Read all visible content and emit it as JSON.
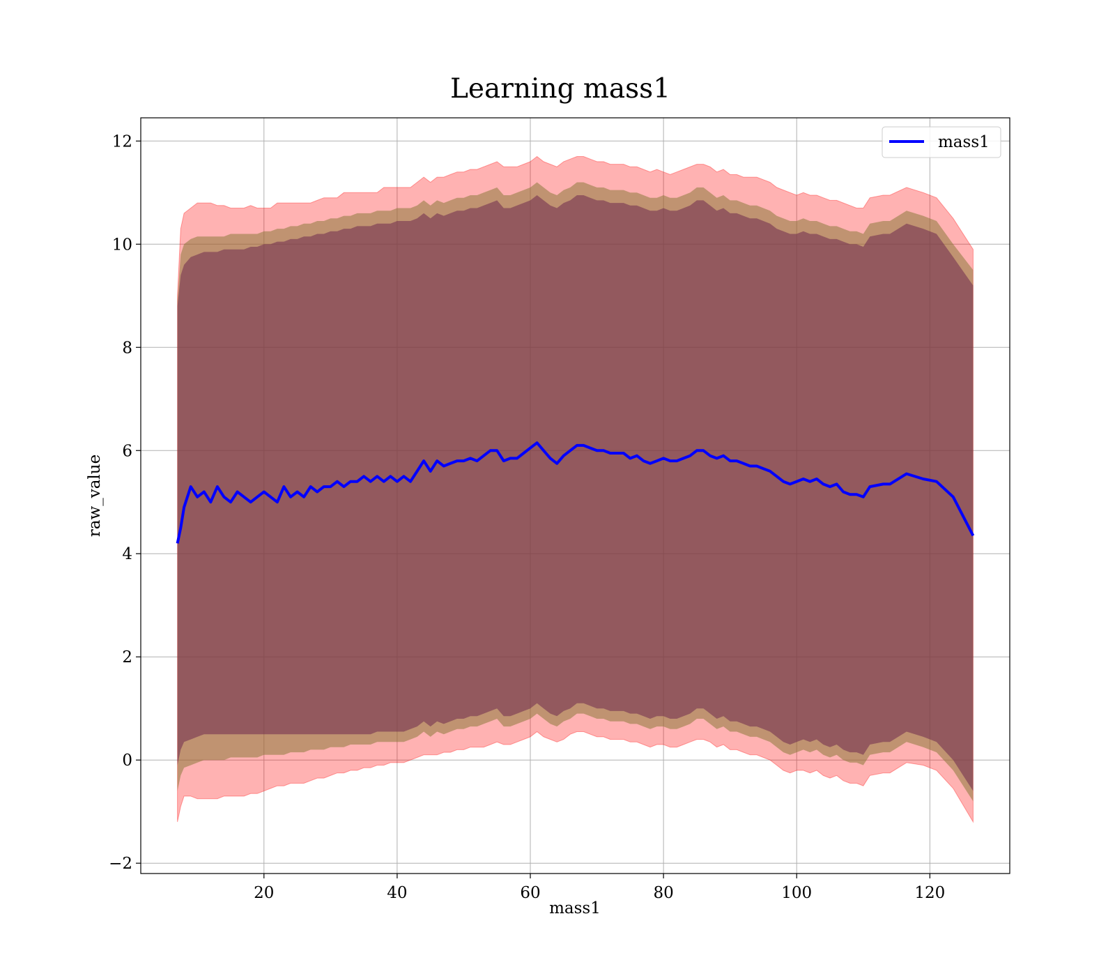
{
  "chart_data": {
    "type": "line",
    "title": "Learning mass1",
    "xlabel": "mass1",
    "ylabel": "raw_value",
    "xlim": [
      1.5,
      132
    ],
    "ylim": [
      -2.2,
      12.45
    ],
    "xticks": [
      20,
      40,
      60,
      80,
      100,
      120
    ],
    "yticks": [
      -2,
      0,
      2,
      4,
      6,
      8,
      10,
      12
    ],
    "grid": true,
    "legend": {
      "position": "top-right",
      "entries": [
        "mass1"
      ]
    },
    "colors": {
      "line": "#0000ff",
      "outer_band": "#ff0000",
      "middle_band": "#8c7a3c",
      "inner_band": "#6e2a4e"
    },
    "series": [
      {
        "name": "mass1",
        "x": [
          7,
          7.5,
          8,
          9,
          10,
          11,
          12,
          13,
          14,
          15,
          16,
          17,
          18,
          19,
          20,
          21,
          22,
          23,
          24,
          25,
          26,
          27,
          28,
          29,
          30,
          31,
          32,
          33,
          34,
          35,
          36,
          37,
          38,
          39,
          40,
          41,
          42,
          43,
          44,
          45,
          46,
          47,
          48,
          49,
          50,
          51,
          52,
          53,
          54,
          55,
          56,
          57,
          58,
          59,
          60,
          61,
          62,
          63,
          64,
          65,
          66,
          67,
          68,
          69,
          70,
          71,
          72,
          73,
          74,
          75,
          76,
          77,
          78,
          79,
          80,
          81,
          82,
          83,
          84,
          85,
          86,
          87,
          88,
          89,
          90,
          91,
          92,
          93,
          94,
          95,
          96,
          97,
          98,
          99,
          100,
          101,
          102,
          103,
          104,
          105,
          106,
          107,
          108,
          109,
          110,
          111,
          113,
          114,
          116.5,
          119,
          121,
          123.5,
          126.5
        ],
        "y": [
          4.2,
          4.5,
          4.9,
          5.3,
          5.1,
          5.2,
          5.0,
          5.3,
          5.1,
          5.0,
          5.2,
          5.1,
          5.0,
          5.1,
          5.2,
          5.1,
          5.0,
          5.3,
          5.1,
          5.2,
          5.1,
          5.3,
          5.2,
          5.3,
          5.3,
          5.4,
          5.3,
          5.4,
          5.4,
          5.5,
          5.4,
          5.5,
          5.4,
          5.5,
          5.4,
          5.5,
          5.4,
          5.6,
          5.8,
          5.6,
          5.8,
          5.7,
          5.75,
          5.8,
          5.8,
          5.85,
          5.8,
          5.9,
          6.0,
          6.0,
          5.8,
          5.85,
          5.85,
          5.95,
          6.05,
          6.15,
          6.0,
          5.85,
          5.75,
          5.9,
          6.0,
          6.1,
          6.1,
          6.05,
          6.0,
          6.0,
          5.95,
          5.95,
          5.95,
          5.85,
          5.9,
          5.8,
          5.75,
          5.8,
          5.85,
          5.8,
          5.8,
          5.85,
          5.9,
          6.0,
          6.0,
          5.9,
          5.85,
          5.9,
          5.8,
          5.8,
          5.75,
          5.7,
          5.7,
          5.65,
          5.6,
          5.5,
          5.4,
          5.35,
          5.4,
          5.45,
          5.4,
          5.45,
          5.35,
          5.3,
          5.35,
          5.2,
          5.15,
          5.15,
          5.1,
          5.3,
          5.35,
          5.35,
          5.55,
          5.45,
          5.4,
          5.1,
          4.35
        ],
        "outer_band": {
          "upper": [
            9.0,
            10.3,
            10.6,
            10.7,
            10.8,
            10.8,
            10.8,
            10.75,
            10.75,
            10.7,
            10.7,
            10.7,
            10.75,
            10.7,
            10.7,
            10.7,
            10.8,
            10.8,
            10.8,
            10.8,
            10.8,
            10.8,
            10.85,
            10.9,
            10.9,
            10.9,
            11.0,
            11.0,
            11.0,
            11.0,
            11.0,
            11.0,
            11.1,
            11.1,
            11.1,
            11.1,
            11.1,
            11.2,
            11.3,
            11.2,
            11.3,
            11.3,
            11.35,
            11.4,
            11.4,
            11.45,
            11.45,
            11.5,
            11.55,
            11.6,
            11.5,
            11.5,
            11.5,
            11.55,
            11.6,
            11.7,
            11.6,
            11.55,
            11.5,
            11.6,
            11.65,
            11.7,
            11.7,
            11.65,
            11.6,
            11.6,
            11.55,
            11.55,
            11.55,
            11.5,
            11.5,
            11.45,
            11.4,
            11.45,
            11.4,
            11.35,
            11.4,
            11.45,
            11.5,
            11.55,
            11.55,
            11.5,
            11.4,
            11.45,
            11.35,
            11.35,
            11.3,
            11.3,
            11.3,
            11.25,
            11.2,
            11.1,
            11.05,
            11.0,
            10.95,
            11.0,
            10.95,
            10.95,
            10.9,
            10.85,
            10.85,
            10.8,
            10.75,
            10.7,
            10.7,
            10.9,
            10.95,
            10.95,
            11.1,
            11.0,
            10.9,
            10.5,
            9.9
          ],
          "lower": [
            -1.2,
            -0.9,
            -0.7,
            -0.7,
            -0.75,
            -0.75,
            -0.75,
            -0.75,
            -0.7,
            -0.7,
            -0.7,
            -0.7,
            -0.65,
            -0.65,
            -0.6,
            -0.55,
            -0.5,
            -0.5,
            -0.45,
            -0.45,
            -0.45,
            -0.4,
            -0.35,
            -0.35,
            -0.3,
            -0.25,
            -0.25,
            -0.2,
            -0.2,
            -0.15,
            -0.15,
            -0.1,
            -0.1,
            -0.05,
            -0.05,
            -0.05,
            0.0,
            0.05,
            0.1,
            0.1,
            0.1,
            0.15,
            0.15,
            0.2,
            0.2,
            0.25,
            0.25,
            0.25,
            0.3,
            0.35,
            0.3,
            0.3,
            0.35,
            0.4,
            0.45,
            0.55,
            0.45,
            0.4,
            0.35,
            0.4,
            0.5,
            0.55,
            0.55,
            0.5,
            0.45,
            0.45,
            0.4,
            0.4,
            0.4,
            0.35,
            0.35,
            0.3,
            0.25,
            0.3,
            0.3,
            0.25,
            0.25,
            0.3,
            0.35,
            0.4,
            0.4,
            0.35,
            0.25,
            0.3,
            0.2,
            0.2,
            0.15,
            0.1,
            0.1,
            0.05,
            0.0,
            -0.1,
            -0.2,
            -0.25,
            -0.2,
            -0.2,
            -0.25,
            -0.2,
            -0.3,
            -0.35,
            -0.3,
            -0.4,
            -0.45,
            -0.45,
            -0.5,
            -0.3,
            -0.25,
            -0.25,
            -0.05,
            -0.1,
            -0.2,
            -0.55,
            -1.2
          ]
        },
        "middle_band": {
          "upper": [
            8.9,
            9.8,
            10.0,
            10.1,
            10.15,
            10.15,
            10.15,
            10.15,
            10.15,
            10.2,
            10.2,
            10.2,
            10.2,
            10.2,
            10.25,
            10.25,
            10.3,
            10.3,
            10.35,
            10.35,
            10.4,
            10.4,
            10.45,
            10.45,
            10.5,
            10.5,
            10.55,
            10.55,
            10.6,
            10.6,
            10.6,
            10.65,
            10.65,
            10.65,
            10.7,
            10.7,
            10.7,
            10.75,
            10.85,
            10.75,
            10.85,
            10.8,
            10.85,
            10.9,
            10.9,
            10.95,
            10.95,
            11.0,
            11.05,
            11.1,
            10.95,
            10.95,
            11.0,
            11.05,
            11.1,
            11.2,
            11.1,
            11.0,
            10.95,
            11.05,
            11.1,
            11.2,
            11.2,
            11.15,
            11.1,
            11.1,
            11.05,
            11.05,
            11.05,
            11.0,
            11.0,
            10.95,
            10.9,
            10.9,
            10.95,
            10.9,
            10.9,
            10.95,
            11.0,
            11.1,
            11.1,
            11.0,
            10.9,
            10.95,
            10.85,
            10.85,
            10.8,
            10.75,
            10.75,
            10.7,
            10.65,
            10.55,
            10.5,
            10.45,
            10.45,
            10.5,
            10.45,
            10.45,
            10.4,
            10.35,
            10.35,
            10.3,
            10.25,
            10.25,
            10.2,
            10.4,
            10.45,
            10.45,
            10.65,
            10.55,
            10.45,
            10.0,
            9.5
          ],
          "lower": [
            -0.6,
            -0.3,
            -0.15,
            -0.1,
            -0.05,
            0.0,
            0.0,
            0.0,
            0.0,
            0.05,
            0.05,
            0.05,
            0.05,
            0.05,
            0.1,
            0.1,
            0.1,
            0.1,
            0.15,
            0.15,
            0.15,
            0.2,
            0.2,
            0.2,
            0.25,
            0.25,
            0.25,
            0.3,
            0.3,
            0.3,
            0.3,
            0.35,
            0.35,
            0.35,
            0.35,
            0.35,
            0.4,
            0.45,
            0.55,
            0.45,
            0.55,
            0.5,
            0.55,
            0.6,
            0.6,
            0.65,
            0.65,
            0.7,
            0.75,
            0.8,
            0.65,
            0.65,
            0.7,
            0.75,
            0.8,
            0.9,
            0.8,
            0.7,
            0.65,
            0.75,
            0.8,
            0.9,
            0.9,
            0.85,
            0.8,
            0.8,
            0.75,
            0.75,
            0.75,
            0.7,
            0.7,
            0.65,
            0.6,
            0.65,
            0.65,
            0.6,
            0.6,
            0.65,
            0.7,
            0.8,
            0.8,
            0.7,
            0.6,
            0.65,
            0.55,
            0.55,
            0.5,
            0.45,
            0.45,
            0.4,
            0.35,
            0.25,
            0.15,
            0.1,
            0.15,
            0.2,
            0.15,
            0.2,
            0.1,
            0.05,
            0.1,
            0.0,
            -0.05,
            -0.05,
            -0.1,
            0.1,
            0.15,
            0.15,
            0.35,
            0.25,
            0.15,
            -0.2,
            -0.8
          ]
        },
        "inner_band": {
          "upper": [
            8.8,
            9.4,
            9.6,
            9.75,
            9.8,
            9.85,
            9.85,
            9.85,
            9.9,
            9.9,
            9.9,
            9.9,
            9.95,
            9.95,
            10.0,
            10.0,
            10.05,
            10.05,
            10.1,
            10.1,
            10.15,
            10.15,
            10.2,
            10.2,
            10.25,
            10.25,
            10.3,
            10.3,
            10.35,
            10.35,
            10.35,
            10.4,
            10.4,
            10.4,
            10.45,
            10.45,
            10.45,
            10.5,
            10.6,
            10.5,
            10.6,
            10.55,
            10.6,
            10.65,
            10.65,
            10.7,
            10.7,
            10.75,
            10.8,
            10.85,
            10.7,
            10.7,
            10.75,
            10.8,
            10.85,
            10.95,
            10.85,
            10.75,
            10.7,
            10.8,
            10.85,
            10.95,
            10.95,
            10.9,
            10.85,
            10.85,
            10.8,
            10.8,
            10.8,
            10.75,
            10.75,
            10.7,
            10.65,
            10.65,
            10.7,
            10.65,
            10.65,
            10.7,
            10.75,
            10.85,
            10.85,
            10.75,
            10.65,
            10.7,
            10.6,
            10.6,
            10.55,
            10.5,
            10.5,
            10.45,
            10.4,
            10.3,
            10.25,
            10.2,
            10.2,
            10.25,
            10.2,
            10.2,
            10.15,
            10.1,
            10.1,
            10.05,
            10.0,
            10.0,
            9.95,
            10.15,
            10.2,
            10.2,
            10.4,
            10.3,
            10.2,
            9.75,
            9.2
          ],
          "lower": [
            -0.1,
            0.2,
            0.35,
            0.4,
            0.45,
            0.5,
            0.5,
            0.5,
            0.5,
            0.5,
            0.5,
            0.5,
            0.5,
            0.5,
            0.5,
            0.5,
            0.5,
            0.5,
            0.5,
            0.5,
            0.5,
            0.5,
            0.5,
            0.5,
            0.5,
            0.5,
            0.5,
            0.5,
            0.5,
            0.5,
            0.5,
            0.55,
            0.55,
            0.55,
            0.55,
            0.55,
            0.6,
            0.65,
            0.75,
            0.65,
            0.75,
            0.7,
            0.75,
            0.8,
            0.8,
            0.85,
            0.85,
            0.9,
            0.95,
            1.0,
            0.85,
            0.85,
            0.9,
            0.95,
            1.0,
            1.1,
            1.0,
            0.9,
            0.85,
            0.95,
            1.0,
            1.1,
            1.1,
            1.05,
            1.0,
            1.0,
            0.95,
            0.95,
            0.95,
            0.9,
            0.9,
            0.85,
            0.8,
            0.85,
            0.85,
            0.8,
            0.8,
            0.85,
            0.9,
            1.0,
            1.0,
            0.9,
            0.8,
            0.85,
            0.75,
            0.75,
            0.7,
            0.65,
            0.65,
            0.6,
            0.55,
            0.45,
            0.35,
            0.3,
            0.35,
            0.4,
            0.35,
            0.4,
            0.3,
            0.25,
            0.3,
            0.2,
            0.15,
            0.15,
            0.1,
            0.3,
            0.35,
            0.35,
            0.55,
            0.45,
            0.35,
            0.0,
            -0.6
          ]
        }
      }
    ]
  }
}
